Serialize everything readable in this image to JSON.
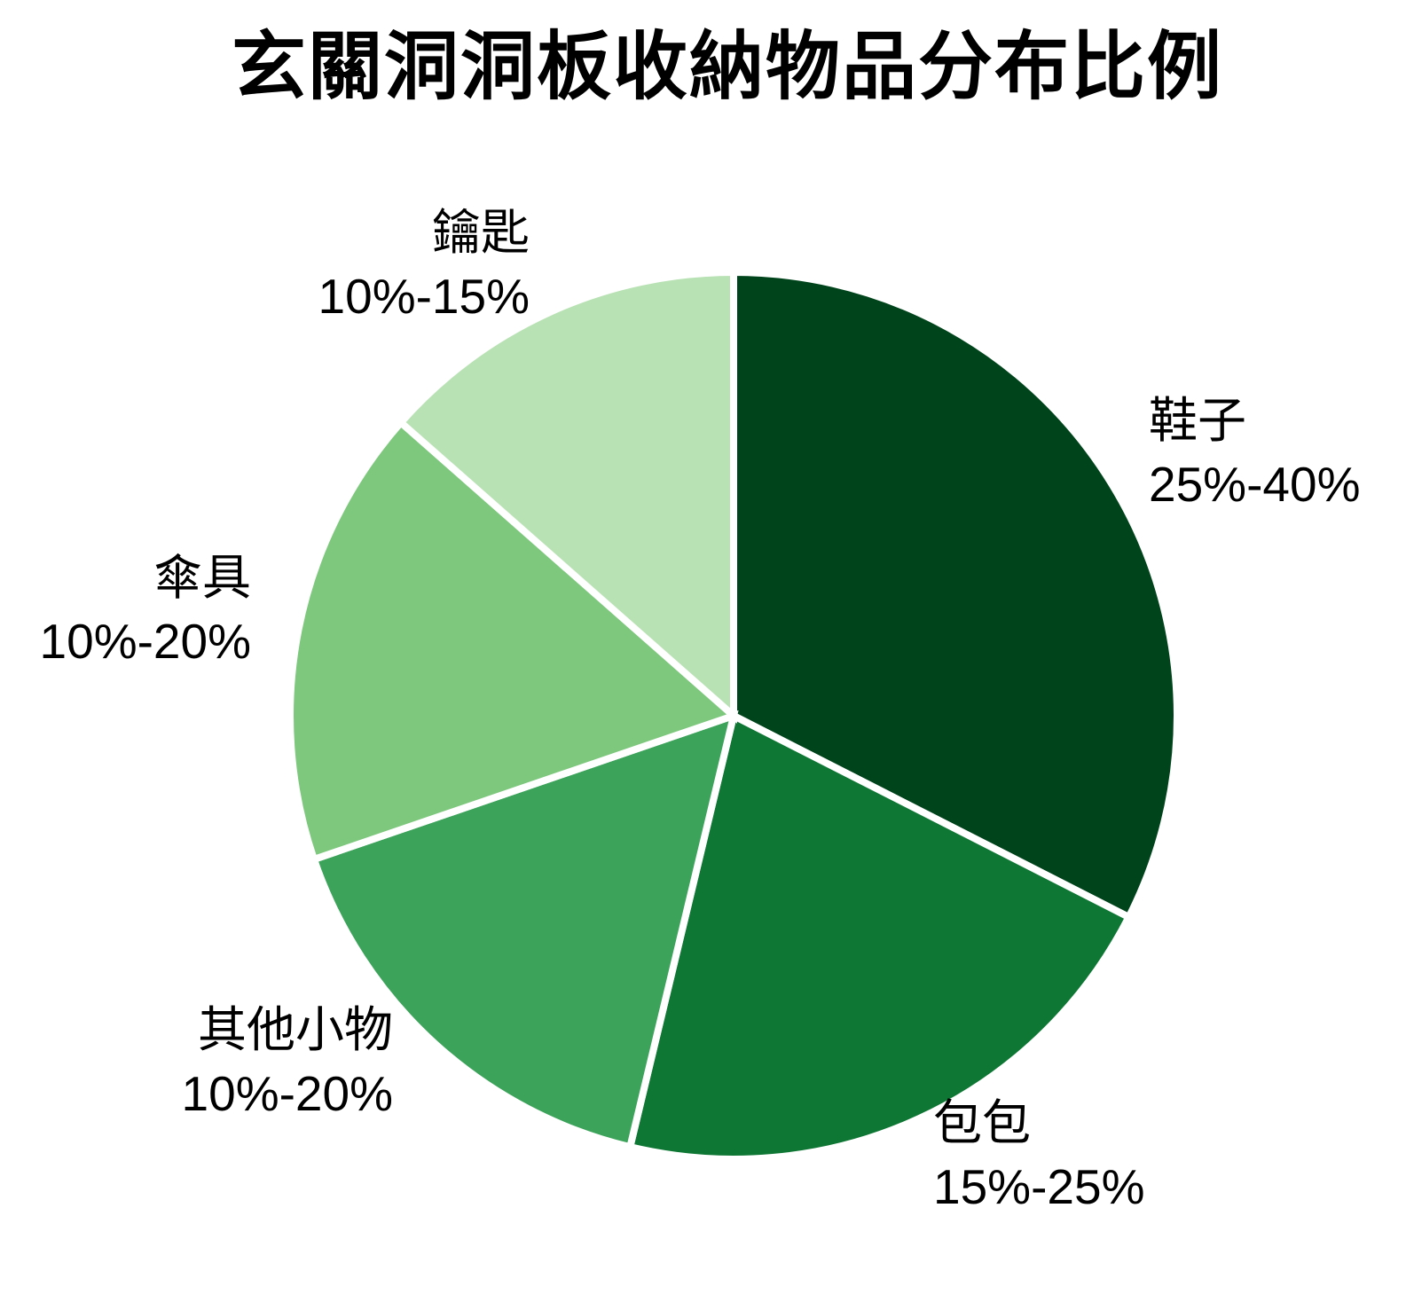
{
  "chart_data": {
    "type": "pie",
    "title": "玄關洞洞板收納物品分布比例",
    "direction": "clockwise",
    "start_angle_deg": 0,
    "separator_color": "#ffffff",
    "background_color": "#ffffff",
    "legend_position": "none",
    "labels_outside": true,
    "slices": [
      {
        "label": "鞋子",
        "range": "25%-40%",
        "fraction": 0.325,
        "color": "#00441b"
      },
      {
        "label": "包包",
        "range": "15%-25%",
        "fraction": 0.2125,
        "color": "#0e7734"
      },
      {
        "label": "其他小物",
        "range": "10%-20%",
        "fraction": 0.16,
        "color": "#3ca35a"
      },
      {
        "label": "傘具",
        "range": "10%-20%",
        "fraction": 0.1675,
        "color": "#7ec87e"
      },
      {
        "label": "鑰匙",
        "range": "10%-15%",
        "fraction": 0.135,
        "color": "#b8e2b4"
      }
    ]
  }
}
